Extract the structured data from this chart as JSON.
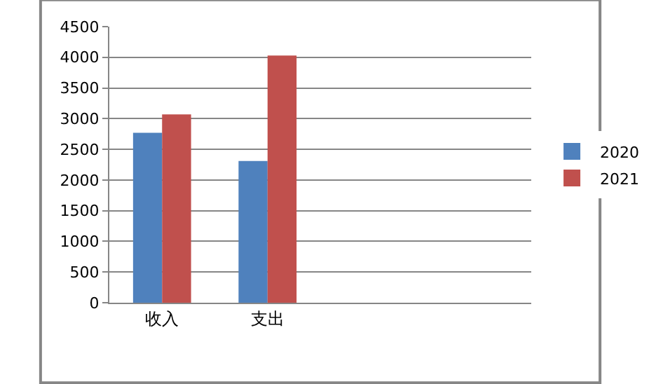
{
  "chart_data": {
    "type": "bar",
    "categories": [
      "收入",
      "支出",
      null,
      null
    ],
    "series": [
      {
        "name": "2020",
        "color": "#4f81bd",
        "values": [
          2770,
          2310,
          null,
          null
        ]
      },
      {
        "name": "2021",
        "color": "#c0504d",
        "values": [
          3070,
          4030,
          null,
          null
        ]
      }
    ],
    "ylim": [
      0,
      4500
    ],
    "yticks": [
      0,
      500,
      1000,
      1500,
      2000,
      2500,
      3000,
      3500,
      4000,
      4500
    ],
    "grid": "y",
    "legend": "right"
  }
}
